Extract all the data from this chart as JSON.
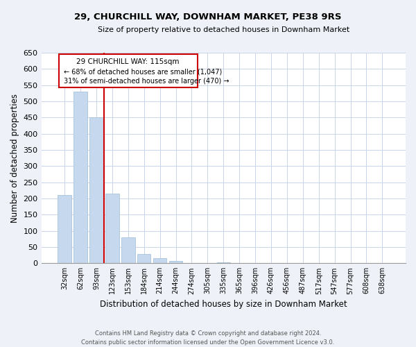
{
  "title": "29, CHURCHILL WAY, DOWNHAM MARKET, PE38 9RS",
  "subtitle": "Size of property relative to detached houses in Downham Market",
  "xlabel": "Distribution of detached houses by size in Downham Market",
  "ylabel": "Number of detached properties",
  "bar_labels": [
    "32sqm",
    "62sqm",
    "93sqm",
    "123sqm",
    "153sqm",
    "184sqm",
    "214sqm",
    "244sqm",
    "274sqm",
    "305sqm",
    "335sqm",
    "365sqm",
    "396sqm",
    "426sqm",
    "456sqm",
    "487sqm",
    "517sqm",
    "547sqm",
    "577sqm",
    "608sqm",
    "638sqm"
  ],
  "bar_values": [
    210,
    530,
    450,
    215,
    80,
    28,
    15,
    8,
    0,
    0,
    2,
    0,
    0,
    0,
    0,
    1,
    0,
    0,
    0,
    1,
    0
  ],
  "bar_color": "#c5d8ed",
  "bar_edge_color": "#a8c4dc",
  "vline_color": "#cc0000",
  "vline_x": 2.5,
  "annotation_title": "29 CHURCHILL WAY: 115sqm",
  "annotation_line1": "← 68% of detached houses are smaller (1,047)",
  "annotation_line2": "31% of semi-detached houses are larger (470) →",
  "annotation_box_color": "#cc0000",
  "ylim": [
    0,
    650
  ],
  "yticks": [
    0,
    50,
    100,
    150,
    200,
    250,
    300,
    350,
    400,
    450,
    500,
    550,
    600,
    650
  ],
  "footer_line1": "Contains HM Land Registry data © Crown copyright and database right 2024.",
  "footer_line2": "Contains public sector information licensed under the Open Government Licence v3.0.",
  "bg_color": "#eef2f8",
  "plot_bg_color": "#ffffff",
  "grid_color": "#c8d4e8"
}
